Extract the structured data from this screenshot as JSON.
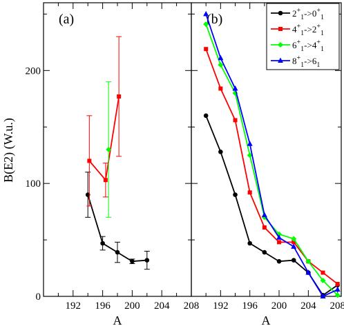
{
  "chart_data": [
    {
      "panel": "(a)",
      "type": "line",
      "xlabel": "A",
      "ylabel": "B(E2) (W.u.)",
      "xlim": [
        188,
        208
      ],
      "ylim": [
        0,
        260
      ],
      "xticks": [
        "192",
        "196",
        "200",
        "204",
        "208"
      ],
      "yticks": [
        "0",
        "100",
        "200"
      ],
      "series": [
        {
          "color": "#000000",
          "marker": "circle",
          "points": [
            {
              "x": 194,
              "y": 90,
              "err": 20
            },
            {
              "x": 196,
              "y": 47,
              "err": 6
            },
            {
              "x": 198,
              "y": 39,
              "err": 9
            },
            {
              "x": 200,
              "y": 31,
              "err": 2
            },
            {
              "x": 202,
              "y": 32,
              "err": 8
            }
          ]
        },
        {
          "color": "#ff0000",
          "marker": "square",
          "points": [
            {
              "x": 194.2,
              "y": 120,
              "err": 40
            },
            {
              "x": 196.4,
              "y": 103,
              "err": 15
            },
            {
              "x": 198.2,
              "y": 177,
              "err": 53
            }
          ]
        },
        {
          "color": "#00ff00",
          "marker": "diamond",
          "points": [
            {
              "x": 196.8,
              "y": 130,
              "err": 60
            }
          ]
        }
      ]
    },
    {
      "panel": "(b)",
      "type": "line",
      "xlabel": "A",
      "ylabel": "",
      "xlim": [
        188,
        208.5
      ],
      "ylim": [
        0,
        260
      ],
      "xticks": [
        "192",
        "196",
        "200",
        "204",
        "208"
      ],
      "legend": {
        "position": "top-right",
        "entries": [
          {
            "base1": "2",
            "sub1": "1",
            "sup1": "+",
            "mid": "->",
            "base2": "0",
            "sub2": "1",
            "sup2": "+",
            "color": "#000000",
            "marker": "circle"
          },
          {
            "base1": "4",
            "sub1": "1",
            "sup1": "+",
            "mid": "->",
            "base2": "2",
            "sub2": "1",
            "sup2": "+",
            "color": "#ff0000",
            "marker": "square"
          },
          {
            "base1": "6",
            "sub1": "1",
            "sup1": "+",
            "mid": "->",
            "base2": "4",
            "sub2": "1",
            "sup2": "+",
            "color": "#00ff00",
            "marker": "diamond"
          },
          {
            "base1": "8",
            "sub1": "1",
            "sup1": "+",
            "mid": "->",
            "base2": "6",
            "sub2": "1",
            "sup2": "",
            "color": "#0000ff",
            "marker": "triangle"
          }
        ]
      },
      "series": [
        {
          "color": "#000000",
          "marker": "circle",
          "x": [
            190,
            192,
            194,
            196,
            198,
            200,
            202,
            204,
            206,
            208
          ],
          "y": [
            160,
            128,
            90,
            47,
            39,
            31,
            32,
            21,
            1,
            10
          ]
        },
        {
          "color": "#ff0000",
          "marker": "square",
          "x": [
            190,
            192,
            194,
            196,
            198,
            200,
            202,
            204,
            206,
            208
          ],
          "y": [
            219,
            184,
            156,
            92,
            61,
            48,
            48,
            31,
            21,
            11
          ]
        },
        {
          "color": "#00ff00",
          "marker": "diamond",
          "x": [
            190,
            192,
            194,
            196,
            198,
            200,
            202,
            204,
            206,
            208
          ],
          "y": [
            241,
            205,
            180,
            125,
            70,
            55,
            51,
            31,
            14,
            1
          ]
        },
        {
          "color": "#0000ff",
          "marker": "triangle",
          "x": [
            190,
            192,
            194,
            196,
            198,
            200,
            202,
            204,
            206,
            208
          ],
          "y": [
            250,
            211,
            184,
            135,
            72,
            52,
            44,
            21,
            0,
            6
          ]
        }
      ]
    }
  ]
}
